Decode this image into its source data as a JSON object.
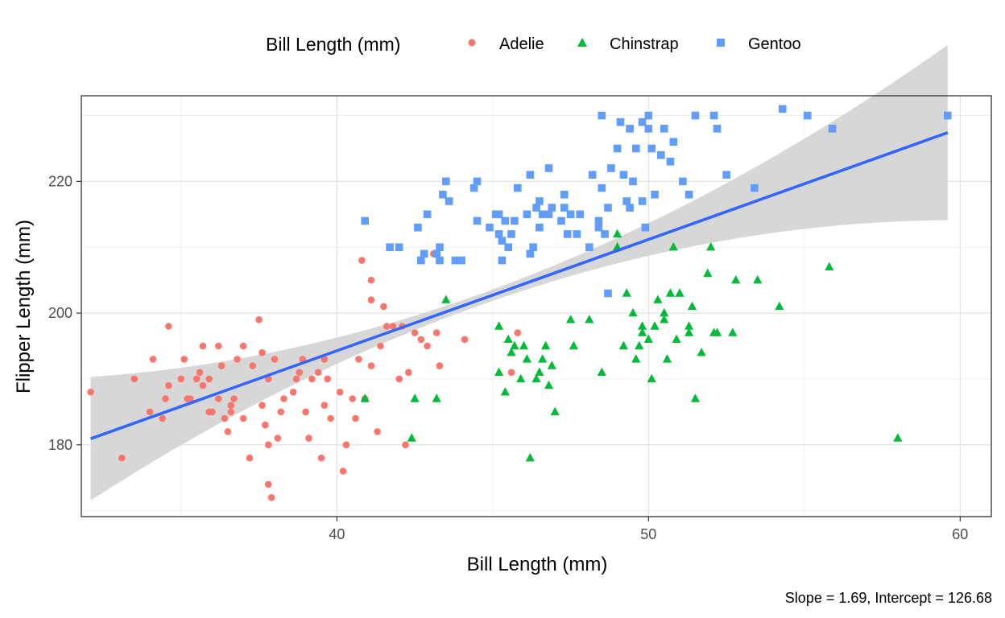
{
  "chart_data": {
    "type": "scatter",
    "xlabel": "Bill Length (mm)",
    "ylabel": "Flipper Length (mm)",
    "xlim": [
      31.8,
      61.0
    ],
    "ylim": [
      169.1,
      233.0
    ],
    "x_ticks": [
      40,
      50,
      60
    ],
    "y_ticks": [
      180,
      200,
      220
    ],
    "x_tick_labels": [
      "40",
      "50",
      "60"
    ],
    "y_tick_labels": [
      "180",
      "200",
      "220"
    ],
    "grid": true,
    "legend": {
      "title": "Bill Length (mm)",
      "position": "top"
    },
    "caption": "Slope = 1.69, Intercept = 126.68",
    "colors": {
      "Adelie": "#F8766D",
      "Chinstrap": "#00BA38",
      "Gentoo": "#619CFF",
      "fit": "#3366FF",
      "band": "#D3D3D3"
    },
    "fit": {
      "slope": 1.69,
      "intercept": 126.68,
      "x_range": [
        32.1,
        59.6
      ]
    },
    "series": [
      {
        "name": "Adelie",
        "marker": "circle",
        "points": [
          [
            32.1,
            188
          ],
          [
            33.1,
            178
          ],
          [
            33.5,
            190
          ],
          [
            34.0,
            185
          ],
          [
            34.1,
            193
          ],
          [
            34.4,
            184
          ],
          [
            34.5,
            187
          ],
          [
            34.6,
            189
          ],
          [
            34.6,
            198
          ],
          [
            35.0,
            190
          ],
          [
            35.1,
            193
          ],
          [
            35.2,
            187
          ],
          [
            35.3,
            187
          ],
          [
            35.5,
            190
          ],
          [
            35.6,
            191
          ],
          [
            35.7,
            189
          ],
          [
            35.7,
            195
          ],
          [
            35.9,
            190
          ],
          [
            36.0,
            185
          ],
          [
            36.2,
            187
          ],
          [
            36.3,
            192
          ],
          [
            36.2,
            195
          ],
          [
            36.4,
            184
          ],
          [
            36.5,
            182
          ],
          [
            36.6,
            185
          ],
          [
            36.7,
            187
          ],
          [
            36.8,
            193
          ],
          [
            37.0,
            184
          ],
          [
            37.0,
            195
          ],
          [
            37.2,
            178
          ],
          [
            37.3,
            192
          ],
          [
            37.5,
            199
          ],
          [
            37.6,
            194
          ],
          [
            37.7,
            183
          ],
          [
            37.8,
            174
          ],
          [
            37.8,
            180
          ],
          [
            37.9,
            172
          ],
          [
            38.0,
            193
          ],
          [
            38.1,
            181
          ],
          [
            38.2,
            185
          ],
          [
            38.3,
            187
          ],
          [
            38.6,
            188
          ],
          [
            38.7,
            190
          ],
          [
            38.8,
            191
          ],
          [
            39.0,
            185
          ],
          [
            39.1,
            181
          ],
          [
            39.2,
            190
          ],
          [
            39.4,
            191
          ],
          [
            39.5,
            178
          ],
          [
            39.6,
            186
          ],
          [
            39.7,
            190
          ],
          [
            39.8,
            184
          ],
          [
            40.1,
            188
          ],
          [
            40.2,
            176
          ],
          [
            40.3,
            180
          ],
          [
            40.5,
            187
          ],
          [
            40.6,
            184
          ],
          [
            40.7,
            193
          ],
          [
            40.8,
            208
          ],
          [
            40.9,
            187
          ],
          [
            41.1,
            192
          ],
          [
            41.4,
            195
          ],
          [
            41.5,
            201
          ],
          [
            41.6,
            198
          ],
          [
            41.8,
            198
          ],
          [
            42.0,
            190
          ],
          [
            42.1,
            198
          ],
          [
            42.2,
            180
          ],
          [
            42.3,
            191
          ],
          [
            42.5,
            197
          ],
          [
            42.7,
            196
          ],
          [
            42.9,
            195
          ],
          [
            43.2,
            197
          ],
          [
            43.3,
            192
          ],
          [
            44.1,
            196
          ],
          [
            45.8,
            197
          ],
          [
            45.6,
            191
          ],
          [
            38.9,
            193
          ],
          [
            36.6,
            186
          ],
          [
            40.9,
            187
          ],
          [
            41.3,
            182
          ],
          [
            35.9,
            185
          ],
          [
            37.6,
            186
          ],
          [
            39.6,
            193
          ],
          [
            43.1,
            209
          ],
          [
            37.8,
            190
          ],
          [
            41.1,
            205
          ],
          [
            41.1,
            202
          ]
        ]
      },
      {
        "name": "Chinstrap",
        "marker": "triangle",
        "points": [
          [
            40.9,
            187
          ],
          [
            42.4,
            181
          ],
          [
            42.5,
            187
          ],
          [
            43.2,
            187
          ],
          [
            43.5,
            202
          ],
          [
            45.2,
            198
          ],
          [
            45.2,
            191
          ],
          [
            45.4,
            188
          ],
          [
            45.5,
            196
          ],
          [
            45.6,
            194
          ],
          [
            45.7,
            195
          ],
          [
            45.9,
            190
          ],
          [
            46.0,
            195
          ],
          [
            46.1,
            193
          ],
          [
            46.2,
            178
          ],
          [
            46.4,
            190
          ],
          [
            46.5,
            191
          ],
          [
            46.6,
            193
          ],
          [
            46.7,
            195
          ],
          [
            46.8,
            189
          ],
          [
            46.9,
            192
          ],
          [
            47.0,
            185
          ],
          [
            47.5,
            199
          ],
          [
            47.6,
            195
          ],
          [
            48.1,
            199
          ],
          [
            48.5,
            191
          ],
          [
            49.0,
            210
          ],
          [
            49.0,
            212
          ],
          [
            49.2,
            195
          ],
          [
            49.3,
            203
          ],
          [
            49.5,
            200
          ],
          [
            49.6,
            193
          ],
          [
            49.7,
            195
          ],
          [
            49.8,
            198
          ],
          [
            50.0,
            196
          ],
          [
            50.1,
            190
          ],
          [
            50.2,
            198
          ],
          [
            50.3,
            202
          ],
          [
            50.5,
            200
          ],
          [
            50.6,
            193
          ],
          [
            50.7,
            203
          ],
          [
            50.8,
            210
          ],
          [
            50.9,
            196
          ],
          [
            51.0,
            203
          ],
          [
            51.3,
            197
          ],
          [
            51.4,
            201
          ],
          [
            51.5,
            187
          ],
          [
            51.7,
            194
          ],
          [
            51.9,
            206
          ],
          [
            52.0,
            210
          ],
          [
            52.1,
            197
          ],
          [
            52.2,
            197
          ],
          [
            52.7,
            197
          ],
          [
            52.8,
            205
          ],
          [
            53.5,
            205
          ],
          [
            54.2,
            201
          ],
          [
            55.8,
            207
          ],
          [
            58.0,
            181
          ],
          [
            51.3,
            198
          ],
          [
            50.5,
            199
          ],
          [
            49.8,
            197
          ]
        ]
      },
      {
        "name": "Gentoo",
        "marker": "square",
        "points": [
          [
            40.9,
            214
          ],
          [
            41.7,
            210
          ],
          [
            42.0,
            210
          ],
          [
            42.6,
            213
          ],
          [
            42.7,
            208
          ],
          [
            42.8,
            209
          ],
          [
            42.9,
            215
          ],
          [
            43.2,
            209
          ],
          [
            43.3,
            208
          ],
          [
            43.4,
            218
          ],
          [
            43.5,
            220
          ],
          [
            43.6,
            217
          ],
          [
            43.8,
            208
          ],
          [
            44.0,
            208
          ],
          [
            44.4,
            219
          ],
          [
            44.5,
            214
          ],
          [
            44.9,
            213
          ],
          [
            45.1,
            215
          ],
          [
            45.2,
            212
          ],
          [
            45.3,
            211
          ],
          [
            45.4,
            214
          ],
          [
            45.5,
            210
          ],
          [
            45.6,
            212
          ],
          [
            45.7,
            214
          ],
          [
            45.8,
            219
          ],
          [
            46.1,
            215
          ],
          [
            46.2,
            221
          ],
          [
            46.3,
            210
          ],
          [
            46.4,
            216
          ],
          [
            46.5,
            213
          ],
          [
            46.6,
            215
          ],
          [
            46.8,
            222
          ],
          [
            46.9,
            216
          ],
          [
            47.2,
            214
          ],
          [
            47.3,
            216
          ],
          [
            47.4,
            212
          ],
          [
            47.5,
            215
          ],
          [
            47.8,
            215
          ],
          [
            48.1,
            210
          ],
          [
            48.2,
            221
          ],
          [
            48.4,
            213
          ],
          [
            48.5,
            219
          ],
          [
            48.6,
            212
          ],
          [
            48.7,
            216
          ],
          [
            48.8,
            222
          ],
          [
            49.0,
            225
          ],
          [
            49.1,
            229
          ],
          [
            49.2,
            221
          ],
          [
            49.3,
            217
          ],
          [
            49.4,
            216
          ],
          [
            49.5,
            220
          ],
          [
            49.6,
            225
          ],
          [
            49.8,
            229
          ],
          [
            49.9,
            213
          ],
          [
            50.0,
            230
          ],
          [
            50.1,
            225
          ],
          [
            50.2,
            218
          ],
          [
            50.4,
            224
          ],
          [
            50.5,
            228
          ],
          [
            50.7,
            223
          ],
          [
            50.8,
            226
          ],
          [
            51.1,
            220
          ],
          [
            51.3,
            218
          ],
          [
            51.5,
            230
          ],
          [
            52.1,
            230
          ],
          [
            52.2,
            228
          ],
          [
            52.5,
            221
          ],
          [
            53.4,
            219
          ],
          [
            54.3,
            231
          ],
          [
            55.1,
            230
          ],
          [
            55.9,
            228
          ],
          [
            59.6,
            230
          ],
          [
            48.5,
            230
          ],
          [
            49.4,
            228
          ],
          [
            50.0,
            228
          ],
          [
            44.5,
            220
          ],
          [
            45.2,
            215
          ],
          [
            46.5,
            217
          ],
          [
            48.4,
            214
          ],
          [
            46.8,
            215
          ],
          [
            43.3,
            210
          ],
          [
            45.3,
            208
          ],
          [
            46.2,
            209
          ],
          [
            47.3,
            218
          ],
          [
            49.8,
            217
          ],
          [
            48.7,
            203
          ],
          [
            47.7,
            212
          ]
        ]
      }
    ]
  }
}
